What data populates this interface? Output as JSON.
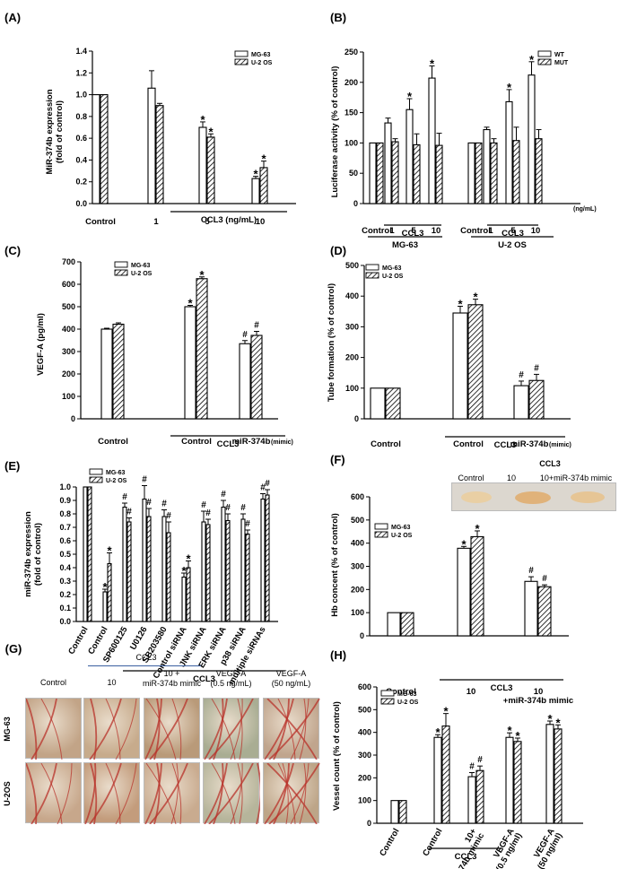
{
  "colors": {
    "bar": "#ffffff",
    "stroke": "#000000",
    "hatch": "#000000",
    "photo_bg": "#c9b29a",
    "vessel": "#b8322a"
  },
  "photos": {
    "F": {
      "labels": [
        "Control",
        "10",
        "10+miR-374b mimic"
      ],
      "group": "CCL3"
    },
    "G": {
      "panel": "(G)",
      "group": "CCL3",
      "cols": [
        "Control",
        "10",
        "10 +\nmiR-374b mimic",
        "VEGF-A\n(0.5 ng/mL)",
        "VEGF-A\n(50 ng/mL)"
      ],
      "rows": [
        "MG-63",
        "U-2OS"
      ]
    }
  },
  "chart_data": [
    {
      "id": "A",
      "panel": "(A)",
      "type": "bar",
      "ylabel": "MiR-374b expression\n(fold of control)",
      "ylim": [
        0,
        1.4
      ],
      "yticks": [
        "0.0",
        "0.2",
        "0.4",
        "0.6",
        "0.8",
        "1.0",
        "1.2",
        "1.4"
      ],
      "legend": [
        "MG-63",
        "U-2 OS"
      ],
      "categories": [
        "Control",
        "1",
        "5",
        "10"
      ],
      "series": [
        {
          "name": "MG-63",
          "values": [
            1.0,
            1.06,
            0.7,
            0.23
          ],
          "err": [
            0,
            0.16,
            0.05,
            0.02
          ],
          "marks": [
            "",
            "",
            "*",
            "*"
          ]
        },
        {
          "name": "U-2 OS",
          "values": [
            1.0,
            0.9,
            0.61,
            0.33
          ],
          "err": [
            0,
            0.02,
            0.03,
            0.06
          ],
          "marks": [
            "",
            "",
            "*",
            "*"
          ]
        }
      ],
      "xgroups": [
        {
          "label": "CCL3 (ng/mL)"
        }
      ]
    },
    {
      "id": "B",
      "panel": "(B)",
      "type": "bar",
      "ylabel": "Luciferase activity (% of control)",
      "ylim": [
        0,
        250
      ],
      "yticks": [
        "0",
        "50",
        "100",
        "150",
        "200",
        "250"
      ],
      "legend": [
        "WT",
        "MUT"
      ],
      "categories": [
        "Control",
        "1",
        "5",
        "10",
        "Control",
        "1",
        "5",
        "10"
      ],
      "series": [
        {
          "name": "WT",
          "values": [
            100,
            133,
            155,
            207,
            100,
            122,
            168,
            212
          ],
          "err": [
            0,
            8,
            18,
            20,
            0,
            4,
            20,
            22
          ],
          "marks": [
            "",
            "",
            "*",
            "*",
            "",
            "",
            "*",
            "*"
          ]
        },
        {
          "name": "MUT",
          "values": [
            100,
            102,
            97,
            96,
            100,
            100,
            104,
            107
          ],
          "err": [
            0,
            5,
            18,
            20,
            0,
            7,
            22,
            15
          ],
          "marks": [
            "",
            "",
            "",
            "",
            "",
            "",
            "",
            ""
          ]
        }
      ],
      "unit_note": "(ng/mL)",
      "xgroups": [
        {
          "label": "CCL3"
        },
        {
          "label": "CCL3"
        },
        {
          "label": "MG-63"
        },
        {
          "label": "U-2 OS"
        }
      ]
    },
    {
      "id": "C",
      "panel": "(C)",
      "type": "bar",
      "ylabel": "VEGF-A (pg/ml)",
      "ylim": [
        0,
        700
      ],
      "yticks": [
        "0",
        "100",
        "200",
        "300",
        "400",
        "500",
        "600",
        "700"
      ],
      "legend": [
        "MG-63",
        "U-2 OS"
      ],
      "categories": [
        "Control",
        "Control",
        "miR-374b"
      ],
      "series": [
        {
          "name": "MG-63",
          "values": [
            400,
            500,
            335
          ],
          "err": [
            4,
            6,
            14
          ],
          "marks": [
            "",
            "*",
            "#"
          ]
        },
        {
          "name": "U-2 OS",
          "values": [
            422,
            625,
            372
          ],
          "err": [
            6,
            8,
            18
          ],
          "marks": [
            "",
            "*",
            "#"
          ]
        }
      ],
      "note": "(mimic)",
      "xgroups": [
        {
          "label": "CCL3"
        }
      ]
    },
    {
      "id": "D",
      "panel": "(D)",
      "type": "bar",
      "ylabel": "Tube formation (% of control)",
      "ylim": [
        0,
        500
      ],
      "yticks": [
        "0",
        "100",
        "200",
        "300",
        "400",
        "500"
      ],
      "legend": [
        "MG-63",
        "U-2 OS"
      ],
      "categories": [
        "Control",
        "Control",
        "miR-374b"
      ],
      "series": [
        {
          "name": "MG-63",
          "values": [
            100,
            345,
            108
          ],
          "err": [
            0,
            22,
            15
          ],
          "marks": [
            "",
            "*",
            "#"
          ]
        },
        {
          "name": "U-2 OS",
          "values": [
            100,
            372,
            125
          ],
          "err": [
            0,
            18,
            20
          ],
          "marks": [
            "",
            "*",
            "#"
          ]
        }
      ],
      "note": "(mimic)",
      "xgroups": [
        {
          "label": "CCL3"
        }
      ]
    },
    {
      "id": "E",
      "panel": "(E)",
      "type": "bar",
      "ylabel": "miR-374b expression\n(fold of control)",
      "ylim": [
        0,
        1.0
      ],
      "yticks": [
        "0.0",
        "0.1",
        "0.2",
        "0.3",
        "0.4",
        "0.5",
        "0.6",
        "0.7",
        "0.8",
        "0.9",
        "1.0"
      ],
      "legend": [
        "MG-63",
        "U-2 OS"
      ],
      "categories": [
        "Control",
        "Control",
        "SP600125",
        "U0126",
        "SB203580",
        "Control siRNA",
        "JNK siRNA",
        "ERK siRNA",
        "p38 siRNA",
        "multiple siRNAs"
      ],
      "series": [
        {
          "name": "MG-63",
          "values": [
            1.0,
            0.22,
            0.85,
            0.91,
            0.78,
            0.33,
            0.74,
            0.85,
            0.76,
            0.91
          ],
          "err": [
            0,
            0.02,
            0.03,
            0.1,
            0.05,
            0.03,
            0.08,
            0.05,
            0.04,
            0.04
          ],
          "marks": [
            "",
            "*",
            "#",
            "#",
            "#",
            "*",
            "#",
            "#",
            "#",
            "#"
          ]
        },
        {
          "name": "U-2 OS",
          "values": [
            1.0,
            0.43,
            0.74,
            0.78,
            0.66,
            0.4,
            0.72,
            0.75,
            0.65,
            0.94
          ],
          "err": [
            0,
            0.08,
            0.03,
            0.06,
            0.08,
            0.05,
            0.04,
            0.05,
            0.03,
            0.04
          ],
          "marks": [
            "",
            "*",
            "#",
            "#",
            "#",
            "*",
            "#",
            "#",
            "#",
            "#"
          ]
        }
      ],
      "xgroups": [
        {
          "label": "CCL3"
        }
      ]
    },
    {
      "id": "F",
      "panel": "(F)",
      "type": "bar",
      "ylabel": "Hb concent (% of control)",
      "ylim": [
        0,
        600
      ],
      "yticks": [
        "0",
        "100",
        "200",
        "300",
        "400",
        "500",
        "600"
      ],
      "legend": [
        "MG-63",
        "U-2 OS"
      ],
      "categories": [
        "Control",
        "10",
        "10\n+miR-374b mimic"
      ],
      "series": [
        {
          "name": "MG-63",
          "values": [
            100,
            378,
            235
          ],
          "err": [
            0,
            8,
            20
          ],
          "marks": [
            "",
            "*",
            "#"
          ]
        },
        {
          "name": "U-2 OS",
          "values": [
            100,
            428,
            212
          ],
          "err": [
            0,
            25,
            8
          ],
          "marks": [
            "",
            "*",
            "#"
          ]
        }
      ],
      "xgroups": [
        {
          "label": "CCL3"
        }
      ]
    },
    {
      "id": "H",
      "panel": "(H)",
      "type": "bar",
      "ylabel": "Vessel count (% of control)",
      "ylim": [
        0,
        600
      ],
      "yticks": [
        "0",
        "100",
        "200",
        "300",
        "400",
        "500",
        "600"
      ],
      "legend": [
        "MG-63",
        "U-2 OS"
      ],
      "categories": [
        "Control",
        "Control",
        "10+\nmiR-374b mimic",
        "VEGF-A\n(0.5 ng/ml)",
        "VEGF-A\n(50 ng/ml)"
      ],
      "series": [
        {
          "name": "MG-63",
          "values": [
            100,
            378,
            205,
            378,
            435
          ],
          "err": [
            0,
            12,
            18,
            20,
            15
          ],
          "marks": [
            "",
            "*",
            "#",
            "*",
            "*"
          ]
        },
        {
          "name": "U-2 OS",
          "values": [
            100,
            428,
            232,
            360,
            415
          ],
          "err": [
            0,
            55,
            20,
            15,
            18
          ],
          "marks": [
            "",
            "*",
            "#",
            "*",
            "*"
          ]
        }
      ],
      "xgroups": [
        {
          "label": "CCL3"
        }
      ]
    }
  ]
}
